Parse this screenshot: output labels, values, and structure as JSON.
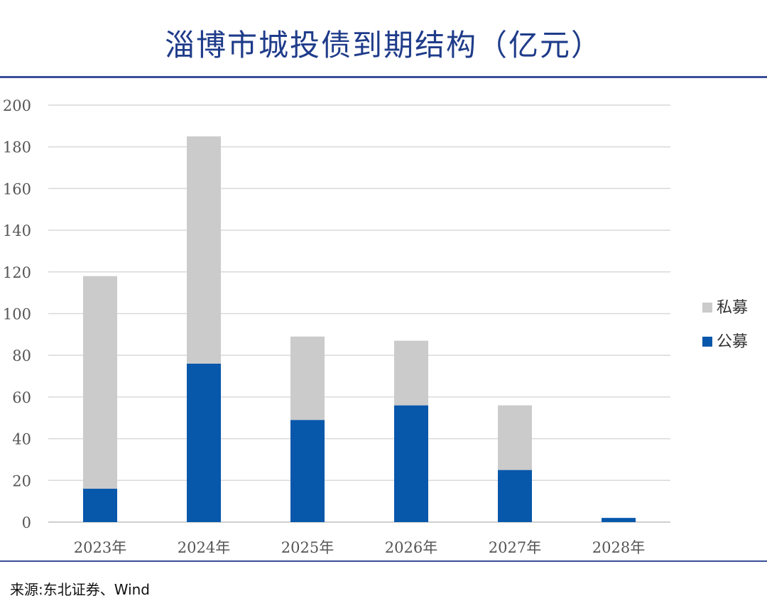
{
  "title": "淄博市城投债到期结构（亿元）",
  "source": "来源:东北证券、Wind",
  "colors": {
    "public": "#0757ab",
    "private": "#cbcbcb",
    "grid": "#d9d9d9",
    "axis": "#bfbfbf"
  },
  "chart_data": {
    "type": "bar",
    "stacked": true,
    "title": "淄博市城投债到期结构（亿元）",
    "categories": [
      "2023年",
      "2024年",
      "2025年",
      "2026年",
      "2027年",
      "2028年"
    ],
    "series": [
      {
        "name": "公募",
        "values": [
          16,
          76,
          49,
          56,
          25,
          2
        ]
      },
      {
        "name": "私募",
        "values": [
          102,
          109,
          40,
          31,
          31,
          0
        ]
      }
    ],
    "ylim": [
      0,
      200
    ],
    "yticks": [
      "0",
      "20",
      "40",
      "60",
      "80",
      "100",
      "120",
      "140",
      "160",
      "180",
      "200"
    ],
    "grid": true,
    "legend": {
      "position": "right",
      "entries": [
        "私募",
        "公募"
      ]
    },
    "xlabel": "",
    "ylabel": ""
  }
}
